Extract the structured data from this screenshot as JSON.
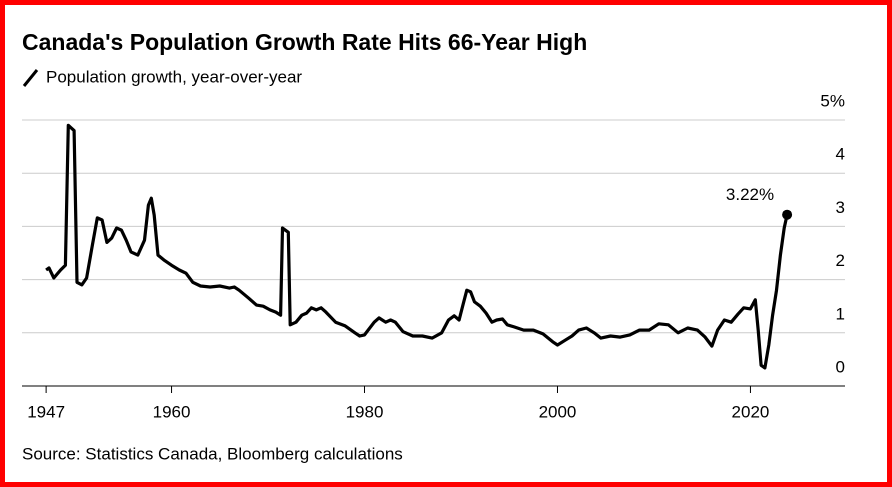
{
  "chart_data": {
    "type": "line",
    "title": "Canada's Population Growth Rate Hits 66-Year High",
    "source": "Source: Statistics Canada, Bloomberg calculations",
    "series": [
      {
        "name": "Population growth, year-over-year",
        "color": "#000000",
        "end_label": "3.22%",
        "x": [
          1947.0,
          1947.3,
          1947.8,
          1948.5,
          1949.0,
          1949.3,
          1949.9,
          1950.2,
          1950.7,
          1951.2,
          1951.8,
          1952.3,
          1952.8,
          1953.3,
          1953.8,
          1954.3,
          1954.8,
          1955.3,
          1955.8,
          1956.5,
          1957.2,
          1957.6,
          1957.9,
          1958.2,
          1958.6,
          1959.2,
          1960.0,
          1960.8,
          1961.5,
          1962.2,
          1963.0,
          1964.0,
          1965.0,
          1966.0,
          1966.5,
          1967.0,
          1968.0,
          1968.8,
          1969.5,
          1970.2,
          1970.8,
          1971.3,
          1971.5,
          1972.1,
          1972.3,
          1972.9,
          1973.5,
          1974.0,
          1974.5,
          1975.0,
          1975.5,
          1976.0,
          1977.0,
          1978.0,
          1979.0,
          1979.5,
          1980.0,
          1981.0,
          1981.5,
          1982.2,
          1982.7,
          1983.2,
          1984.0,
          1985.0,
          1986.0,
          1987.0,
          1988.0,
          1988.7,
          1989.3,
          1989.8,
          1990.2,
          1990.6,
          1991.0,
          1991.4,
          1992.0,
          1992.6,
          1993.2,
          1993.7,
          1994.3,
          1994.8,
          1995.5,
          1996.5,
          1997.5,
          1998.5,
          1999.5,
          2000.0,
          2000.8,
          2001.5,
          2002.2,
          2003.0,
          2003.8,
          2004.5,
          2005.5,
          2006.5,
          2007.5,
          2008.5,
          2009.5,
          2010.5,
          2011.5,
          2012.5,
          2013.5,
          2014.5,
          2015.3,
          2016.0,
          2016.6,
          2017.3,
          2018.0,
          2018.7,
          2019.3,
          2020.0,
          2020.5,
          2020.8,
          2021.1,
          2021.5,
          2021.9,
          2022.3,
          2022.7,
          2023.1,
          2023.5,
          2023.8
        ],
        "values": [
          2.18,
          2.22,
          2.03,
          2.18,
          2.27,
          4.9,
          4.8,
          1.95,
          1.9,
          2.03,
          2.65,
          3.16,
          3.12,
          2.7,
          2.78,
          2.97,
          2.93,
          2.74,
          2.52,
          2.46,
          2.74,
          3.4,
          3.53,
          3.21,
          2.46,
          2.37,
          2.27,
          2.18,
          2.12,
          1.95,
          1.88,
          1.86,
          1.88,
          1.84,
          1.86,
          1.8,
          1.65,
          1.52,
          1.5,
          1.43,
          1.39,
          1.33,
          2.97,
          2.89,
          1.15,
          1.2,
          1.33,
          1.37,
          1.47,
          1.43,
          1.47,
          1.39,
          1.2,
          1.13,
          1.0,
          0.94,
          0.96,
          1.2,
          1.28,
          1.2,
          1.24,
          1.2,
          1.02,
          0.94,
          0.94,
          0.9,
          1.0,
          1.24,
          1.32,
          1.24,
          1.52,
          1.8,
          1.77,
          1.58,
          1.5,
          1.37,
          1.2,
          1.24,
          1.26,
          1.15,
          1.11,
          1.05,
          1.05,
          0.98,
          0.83,
          0.77,
          0.86,
          0.94,
          1.05,
          1.09,
          1.0,
          0.9,
          0.94,
          0.92,
          0.96,
          1.05,
          1.05,
          1.17,
          1.15,
          1.0,
          1.09,
          1.05,
          0.92,
          0.75,
          1.05,
          1.24,
          1.2,
          1.35,
          1.47,
          1.45,
          1.62,
          1.05,
          0.39,
          0.34,
          0.77,
          1.33,
          1.8,
          2.46,
          2.97,
          3.22
        ]
      }
    ],
    "xlim": [
      1944.5,
      2029.8
    ],
    "xticks": [
      1947,
      1960,
      1980,
      2000,
      2020
    ],
    "ylim": [
      0,
      5
    ],
    "yticks": [
      0,
      1,
      2,
      3,
      4,
      {
        "value": 5,
        "label": "5%"
      }
    ],
    "grid": true
  }
}
